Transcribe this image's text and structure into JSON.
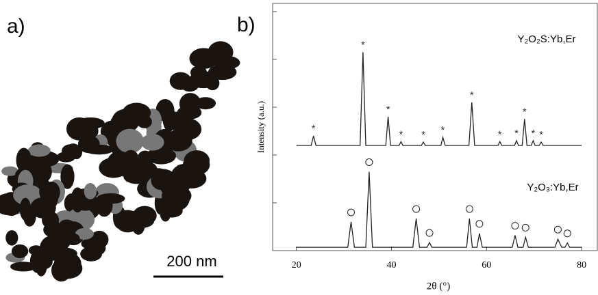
{
  "panel_labels": [
    "a)",
    "b)"
  ],
  "scale_bar": "200 nm",
  "chart_data": {
    "type": "line",
    "xlabel": "2θ (°)",
    "ylabel": "Intensity (a.u.)",
    "xlim": [
      15,
      83.3
    ],
    "xticks": [
      20,
      40,
      60,
      80
    ],
    "ylim": [
      0,
      5.17
    ],
    "yticks": [
      0,
      1,
      2,
      3,
      4,
      5
    ],
    "series": [
      {
        "name": "Y₂O₂S:Yb,Er",
        "color": "#222222",
        "marker": "*",
        "x": [
          20,
          23.1,
          23.6,
          24.1,
          33.4,
          34,
          34.6,
          38.8,
          39.3,
          39.8,
          41.6,
          42,
          42.4,
          46.3,
          46.7,
          47.1,
          50.4,
          50.8,
          51.3,
          56.3,
          56.9,
          57.5,
          62.4,
          62.8,
          63.2,
          65.9,
          66.3,
          66.7,
          67.5,
          68,
          68.5,
          69.4,
          69.8,
          70.2,
          71.1,
          71.5,
          71.9,
          80
        ],
        "values": [
          2.2,
          2.2,
          2.4,
          2.2,
          2.2,
          4.15,
          2.2,
          2.2,
          2.8,
          2.2,
          2.2,
          2.28,
          2.2,
          2.2,
          2.27,
          2.2,
          2.2,
          2.37,
          2.2,
          2.2,
          3.1,
          2.2,
          2.2,
          2.28,
          2.2,
          2.2,
          2.3,
          2.2,
          2.2,
          2.75,
          2.2,
          2.2,
          2.3,
          2.2,
          2.2,
          2.27,
          2.2,
          2.2
        ],
        "peaks": [
          23.6,
          34,
          39.3,
          42,
          46.7,
          50.8,
          56.9,
          62.8,
          66.3,
          68,
          69.8,
          71.5
        ],
        "peak_values": [
          2.4,
          4.15,
          2.8,
          2.28,
          2.27,
          2.37,
          3.1,
          2.28,
          2.3,
          2.75,
          2.3,
          2.27
        ]
      },
      {
        "name": "Y₂O₃:Yb,Er",
        "color": "#222222",
        "marker": "circle",
        "x": [
          20,
          30.8,
          31.5,
          32.2,
          34.6,
          35.3,
          36,
          44.5,
          45.2,
          45.9,
          47.5,
          48,
          48.5,
          55.8,
          56.4,
          57,
          58,
          58.5,
          59.1,
          65.4,
          66,
          66.6,
          67.7,
          68.2,
          68.8,
          74.4,
          75,
          75.8,
          76.5,
          77,
          77.5,
          80
        ],
        "values": [
          0.07,
          0.07,
          0.6,
          0.07,
          0.07,
          1.65,
          0.07,
          0.07,
          0.67,
          0.07,
          0.07,
          0.17,
          0.07,
          0.07,
          0.67,
          0.07,
          0.07,
          0.36,
          0.07,
          0.07,
          0.32,
          0.07,
          0.07,
          0.28,
          0.07,
          0.07,
          0.24,
          0.07,
          0.07,
          0.16,
          0.07,
          0.07
        ],
        "peaks": [
          31.5,
          35.3,
          45.2,
          48,
          56.4,
          58.5,
          66,
          68.2,
          75,
          77
        ],
        "peak_values": [
          0.6,
          1.65,
          0.67,
          0.17,
          0.67,
          0.36,
          0.32,
          0.28,
          0.24,
          0.16
        ]
      }
    ]
  }
}
